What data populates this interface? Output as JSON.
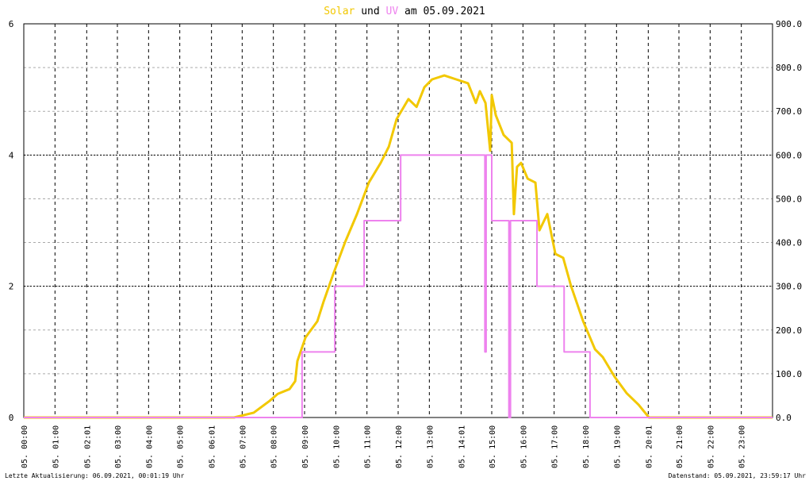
{
  "chart_data": {
    "type": "line",
    "title_connector": "und",
    "title_date": "am 05.09.2021",
    "footer_left": "Letzte Aktualisierung: 06.09.2021, 00:01:19 Uhr",
    "footer_right": "Datenstand: 05.09.2021, 23:59:17 Uhr",
    "xlim": [
      0,
      24
    ],
    "xticks": [
      {
        "value": 0,
        "label": "05. 00:00"
      },
      {
        "value": 1,
        "label": "05. 01:00"
      },
      {
        "value": 2.0167,
        "label": "05. 02:01"
      },
      {
        "value": 3,
        "label": "05. 03:00"
      },
      {
        "value": 4,
        "label": "05. 04:00"
      },
      {
        "value": 5,
        "label": "05. 05:00"
      },
      {
        "value": 6.0167,
        "label": "05. 06:01"
      },
      {
        "value": 7,
        "label": "05. 07:00"
      },
      {
        "value": 8,
        "label": "05. 08:00"
      },
      {
        "value": 9,
        "label": "05. 09:00"
      },
      {
        "value": 10,
        "label": "05. 10:00"
      },
      {
        "value": 11,
        "label": "05. 11:00"
      },
      {
        "value": 12,
        "label": "05. 12:00"
      },
      {
        "value": 13,
        "label": "05. 13:00"
      },
      {
        "value": 14.0167,
        "label": "05. 14:01"
      },
      {
        "value": 15,
        "label": "05. 15:00"
      },
      {
        "value": 16,
        "label": "05. 16:00"
      },
      {
        "value": 17,
        "label": "05. 17:00"
      },
      {
        "value": 18,
        "label": "05. 18:00"
      },
      {
        "value": 19,
        "label": "05. 19:00"
      },
      {
        "value": 20.0167,
        "label": "05. 20:01"
      },
      {
        "value": 21,
        "label": "05. 21:00"
      },
      {
        "value": 22,
        "label": "05. 22:00"
      },
      {
        "value": 23,
        "label": "05. 23:00"
      }
    ],
    "ylim": [
      0,
      6
    ],
    "yticks": [
      0,
      2,
      4,
      6
    ],
    "y2lim": [
      0,
      900
    ],
    "y2ticks": [
      {
        "value": 0,
        "label": "0.0"
      },
      {
        "value": 100,
        "label": "100.0"
      },
      {
        "value": 200,
        "label": "200.0"
      },
      {
        "value": 300,
        "label": "300.0"
      },
      {
        "value": 400,
        "label": "400.0"
      },
      {
        "value": 500,
        "label": "500.0"
      },
      {
        "value": 600,
        "label": "600.0"
      },
      {
        "value": 700,
        "label": "700.0"
      },
      {
        "value": 800,
        "label": "800.0"
      },
      {
        "value": 900,
        "label": "900.0"
      }
    ],
    "grid": true,
    "series": [
      {
        "name": "Solar",
        "color": "#f2c800",
        "axis": "y2",
        "x": [
          0,
          6.74,
          7.37,
          7.88,
          8.14,
          8.52,
          8.7,
          8.77,
          9.03,
          9.41,
          9.61,
          9.92,
          10.3,
          10.68,
          11.06,
          11.44,
          11.7,
          11.95,
          12.33,
          12.59,
          12.84,
          13.09,
          13.48,
          13.86,
          14.24,
          14.49,
          14.62,
          14.8,
          14.95,
          15.0,
          15.13,
          15.38,
          15.64,
          15.71,
          15.81,
          15.94,
          16.15,
          16.4,
          16.53,
          16.78,
          17.04,
          17.29,
          17.54,
          17.93,
          18.31,
          18.56,
          18.94,
          19.32,
          19.71,
          20.04,
          24
        ],
        "values": [
          0,
          0,
          11,
          38,
          54,
          65,
          83,
          129,
          183,
          220,
          265,
          328,
          401,
          465,
          537,
          582,
          619,
          682,
          728,
          710,
          755,
          773,
          782,
          773,
          764,
          719,
          746,
          719,
          610,
          737,
          691,
          646,
          628,
          465,
          573,
          582,
          546,
          537,
          428,
          465,
          374,
          365,
          301,
          220,
          156,
          138,
          93,
          56,
          29,
          0,
          0
        ]
      },
      {
        "name": "UV",
        "color": "#ee82ee",
        "axis": "y",
        "x": [
          0,
          8.92,
          8.92,
          9.97,
          9.97,
          10.91,
          10.91,
          12.08,
          12.08,
          14.78,
          14.78,
          14.82,
          14.82,
          15.0,
          15.0,
          15.55,
          15.55,
          15.6,
          15.6,
          16.45,
          16.45,
          17.32,
          17.32,
          18.15,
          18.15,
          24
        ],
        "values": [
          0,
          0,
          1,
          1,
          2,
          2,
          3,
          3,
          4,
          4,
          1,
          1,
          4,
          4,
          3,
          3,
          0,
          0,
          3,
          3,
          2,
          2,
          1,
          1,
          0,
          0
        ]
      }
    ]
  }
}
